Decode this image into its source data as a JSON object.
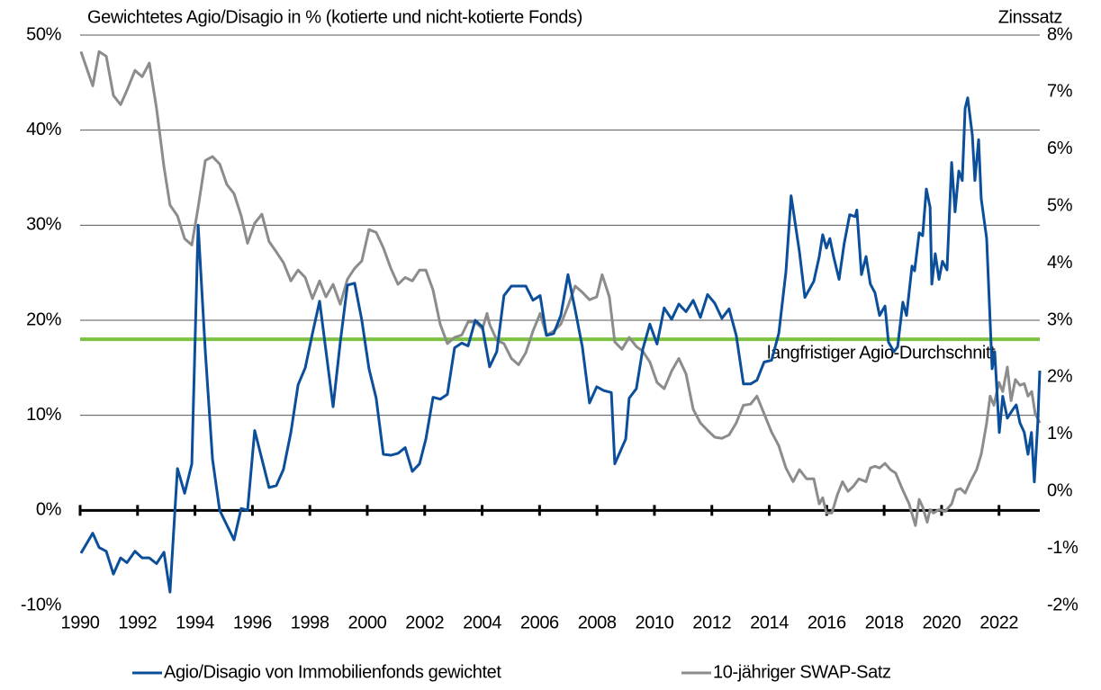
{
  "chart_data": {
    "type": "line",
    "title": "Gewichtetes Agio/Disagio in % (kotierte und nicht-kotierte Fonds)",
    "y2_title": "Zinssatz",
    "xlim": [
      1990,
      2023.42
    ],
    "xticks": [
      1990,
      1992,
      1994,
      1996,
      1998,
      2000,
      2002,
      2004,
      2006,
      2008,
      2010,
      2012,
      2014,
      2016,
      2018,
      2020,
      2022
    ],
    "ylim": [
      -10,
      50
    ],
    "yticks": [
      {
        "value": -10,
        "label": "-10%"
      },
      {
        "value": 0,
        "label": "0%"
      },
      {
        "value": 10,
        "label": "10%"
      },
      {
        "value": 20,
        "label": "20%"
      },
      {
        "value": 30,
        "label": "30%"
      },
      {
        "value": 40,
        "label": "40%"
      },
      {
        "value": 50,
        "label": "50%"
      }
    ],
    "y2lim": [
      -2,
      8
    ],
    "y2ticks": [
      {
        "value": -2,
        "label": "-2%"
      },
      {
        "value": -1,
        "label": "-1%"
      },
      {
        "value": 0,
        "label": "0%"
      },
      {
        "value": 1,
        "label": "1%"
      },
      {
        "value": 2,
        "label": "2%"
      },
      {
        "value": 3,
        "label": "3%"
      },
      {
        "value": 4,
        "label": "4%"
      },
      {
        "value": 5,
        "label": "5%"
      },
      {
        "value": 6,
        "label": "6%"
      },
      {
        "value": 7,
        "label": "7%"
      },
      {
        "value": 8,
        "label": "8%"
      }
    ],
    "grid": true,
    "reference_line": {
      "value": 18,
      "label": "langfristiger Agio-Durchschnitt",
      "color": "#7dc242"
    },
    "series": [
      {
        "name": "Agio/Disagio von Immobilienfonds gewichtet",
        "color": "#0b4f9a",
        "axis": "y",
        "x": [
          1990.03,
          1990.44,
          1990.66,
          1990.91,
          1991.16,
          1991.41,
          1991.63,
          1991.91,
          1992.16,
          1992.41,
          1992.66,
          1992.92,
          1993.13,
          1993.39,
          1993.64,
          1993.89,
          1994.11,
          1994.36,
          1994.61,
          1994.86,
          1995.36,
          1995.61,
          1995.83,
          1996.08,
          1996.58,
          1996.83,
          1997.08,
          1997.34,
          1997.59,
          1997.84,
          1998.09,
          1998.34,
          1998.81,
          1999.06,
          1999.31,
          1999.56,
          1999.81,
          2000.06,
          2000.31,
          2000.56,
          2000.82,
          2001.07,
          2001.32,
          2001.57,
          2001.82,
          2002.04,
          2002.29,
          2002.54,
          2002.79,
          2003.04,
          2003.29,
          2003.51,
          2003.76,
          2004.01,
          2004.26,
          2004.51,
          2004.76,
          2005.02,
          2005.52,
          2005.77,
          2006.02,
          2006.24,
          2006.49,
          2006.74,
          2006.99,
          2007.24,
          2007.49,
          2007.74,
          2007.99,
          2008.24,
          2008.5,
          2008.62,
          2009.0,
          2009.12,
          2009.37,
          2009.59,
          2009.84,
          2010.09,
          2010.34,
          2010.6,
          2010.85,
          2011.1,
          2011.35,
          2011.6,
          2011.85,
          2012.1,
          2012.35,
          2012.6,
          2012.85,
          2013.1,
          2013.35,
          2013.57,
          2013.82,
          2014.08,
          2014.33,
          2014.58,
          2014.76,
          2015.05,
          2015.24,
          2015.55,
          2015.74,
          2015.86,
          2015.99,
          2016.11,
          2016.24,
          2016.43,
          2016.61,
          2016.8,
          2016.99,
          2017.05,
          2017.21,
          2017.37,
          2017.52,
          2017.68,
          2017.84,
          2018.03,
          2018.15,
          2018.34,
          2018.47,
          2018.65,
          2018.78,
          2018.97,
          2019.06,
          2019.22,
          2019.34,
          2019.47,
          2019.6,
          2019.66,
          2019.78,
          2019.91,
          2020.03,
          2020.19,
          2020.35,
          2020.47,
          2020.6,
          2020.72,
          2020.82,
          2020.91,
          2021.07,
          2021.16,
          2021.29,
          2021.38,
          2021.57,
          2021.76,
          2021.85,
          2022.01,
          2022.13,
          2022.29,
          2022.48,
          2022.6,
          2022.73,
          2022.88,
          2023.01,
          2023.13,
          2023.23,
          2023.35,
          2023.42
        ],
        "values": [
          -4.5,
          -2.4,
          -3.9,
          -4.3,
          -6.7,
          -5,
          -5.5,
          -4.3,
          -5,
          -5,
          -5.6,
          -4.4,
          -8.6,
          4.4,
          1.8,
          4.9,
          30,
          16.7,
          5.4,
          0,
          -3.1,
          0.2,
          0,
          8.4,
          2.4,
          2.6,
          4.3,
          8.2,
          13.2,
          15,
          18.6,
          22,
          10.9,
          17.7,
          23.7,
          23.9,
          20,
          14.9,
          11.8,
          5.9,
          5.8,
          6,
          6.6,
          4.1,
          4.9,
          7.5,
          11.9,
          11.7,
          12.2,
          17.1,
          17.6,
          17.3,
          20,
          19.3,
          15.1,
          16.7,
          22.6,
          23.6,
          23.6,
          22.1,
          22.6,
          18.4,
          18.6,
          20.5,
          24.8,
          21.1,
          17.2,
          11.3,
          13,
          12.6,
          12.4,
          4.9,
          7.5,
          11.8,
          12.8,
          16.9,
          19.6,
          17.5,
          21.3,
          20.1,
          21.7,
          20.9,
          22.1,
          20.3,
          22.7,
          21.8,
          20.2,
          21.2,
          18.4,
          13.3,
          13.3,
          13.7,
          15.6,
          15.8,
          18.6,
          25.1,
          33.1,
          27.2,
          22.4,
          24.1,
          26.7,
          29,
          27.6,
          28.6,
          26.7,
          24.3,
          28.1,
          31.1,
          30.9,
          31.6,
          24.8,
          26.7,
          23.8,
          22.9,
          20.5,
          21.5,
          17.7,
          16.7,
          17.2,
          21.9,
          20.5,
          25.7,
          25.2,
          29.2,
          28.9,
          33.8,
          31.9,
          23.8,
          27,
          24.3,
          26.2,
          25.3,
          36.6,
          31.4,
          35.7,
          34.7,
          42.3,
          43.4,
          39.5,
          34.7,
          39,
          32.8,
          28.6,
          14.9,
          16.7,
          8.2,
          12,
          9.7,
          10.6,
          11.1,
          9.2,
          8.2,
          5.9,
          8.2,
          3,
          9.2,
          14.7
        ]
      },
      {
        "name": "10-jähriger SWAP-Satz",
        "color": "#8c8c8c",
        "axis": "y2",
        "x": [
          1990.03,
          1990.44,
          1990.66,
          1990.91,
          1991.16,
          1991.41,
          1991.63,
          1991.91,
          1992.16,
          1992.41,
          1992.66,
          1992.92,
          1993.13,
          1993.39,
          1993.64,
          1993.89,
          1994.11,
          1994.36,
          1994.61,
          1994.86,
          1995.11,
          1995.36,
          1995.61,
          1995.83,
          1996.08,
          1996.33,
          1996.58,
          1996.83,
          1997.08,
          1997.34,
          1997.59,
          1997.84,
          1998.09,
          1998.34,
          1998.56,
          1998.81,
          1999.06,
          1999.31,
          1999.56,
          1999.81,
          2000.06,
          2000.31,
          2000.56,
          2000.82,
          2001.07,
          2001.32,
          2001.57,
          2001.82,
          2002.04,
          2002.29,
          2002.54,
          2002.79,
          2003.04,
          2003.29,
          2003.51,
          2003.76,
          2004.01,
          2004.17,
          2004.26,
          2004.51,
          2004.76,
          2005.02,
          2005.27,
          2005.52,
          2005.77,
          2006.02,
          2006.24,
          2006.49,
          2006.74,
          2006.99,
          2007.24,
          2007.49,
          2007.74,
          2007.99,
          2008.18,
          2008.43,
          2008.62,
          2008.87,
          2009.12,
          2009.37,
          2009.59,
          2009.84,
          2010.09,
          2010.34,
          2010.6,
          2010.85,
          2011.1,
          2011.35,
          2011.6,
          2011.85,
          2012.1,
          2012.35,
          2012.6,
          2012.85,
          2013.1,
          2013.35,
          2013.57,
          2013.82,
          2014.08,
          2014.33,
          2014.58,
          2014.83,
          2015.05,
          2015.3,
          2015.55,
          2015.74,
          2015.86,
          2015.99,
          2016.18,
          2016.37,
          2016.55,
          2016.74,
          2016.93,
          2017.12,
          2017.37,
          2017.52,
          2017.68,
          2017.84,
          2018.03,
          2018.22,
          2018.4,
          2018.65,
          2018.87,
          2019.09,
          2019.22,
          2019.34,
          2019.5,
          2019.6,
          2019.72,
          2019.91,
          2020.13,
          2020.35,
          2020.5,
          2020.66,
          2020.82,
          2021.0,
          2021.22,
          2021.38,
          2021.57,
          2021.69,
          2021.82,
          2022.0,
          2022.13,
          2022.29,
          2022.42,
          2022.57,
          2022.73,
          2022.88,
          2023.01,
          2023.14,
          2023.26,
          2023.42
        ],
        "values": [
          7.71,
          7.11,
          7.71,
          7.63,
          6.94,
          6.78,
          7.03,
          7.38,
          7.27,
          7.51,
          6.72,
          5.69,
          5.02,
          4.83,
          4.43,
          4.32,
          4.98,
          5.8,
          5.87,
          5.74,
          5.38,
          5.22,
          4.83,
          4.35,
          4.7,
          4.86,
          4.38,
          4.2,
          4.01,
          3.69,
          3.88,
          3.75,
          3.38,
          3.69,
          3.41,
          3.63,
          3.28,
          3.72,
          3.91,
          4.04,
          4.59,
          4.54,
          4.27,
          3.91,
          3.63,
          3.75,
          3.69,
          3.88,
          3.88,
          3.53,
          2.93,
          2.59,
          2.7,
          2.74,
          2.97,
          2.97,
          2.85,
          3.12,
          2.93,
          2.65,
          2.59,
          2.33,
          2.22,
          2.43,
          2.81,
          3.12,
          2.74,
          2.81,
          2.93,
          3.25,
          3.6,
          3.49,
          3.36,
          3.41,
          3.8,
          3.41,
          2.62,
          2.49,
          2.7,
          2.54,
          2.46,
          2.27,
          1.91,
          1.8,
          2.11,
          2.33,
          2.06,
          1.44,
          1.2,
          1.07,
          0.95,
          0.93,
          0.99,
          1.2,
          1.51,
          1.53,
          1.67,
          1.36,
          1.04,
          0.8,
          0.41,
          0.17,
          0.38,
          0.22,
          0.22,
          -0.22,
          -0.11,
          -0.38,
          -0.38,
          -0.06,
          0.17,
          0,
          0.09,
          0.22,
          0.17,
          0.41,
          0.44,
          0.41,
          0.49,
          0.38,
          0.32,
          0.02,
          -0.22,
          -0.6,
          -0.14,
          -0.27,
          -0.54,
          -0.32,
          -0.38,
          -0.32,
          -0.35,
          -0.22,
          0.02,
          0.05,
          -0.03,
          0.17,
          0.38,
          0.65,
          1.2,
          1.67,
          1.51,
          1.91,
          1.75,
          2.18,
          1.59,
          1.96,
          1.86,
          1.89,
          1.67,
          1.75,
          1.36,
          1.2
        ]
      }
    ]
  }
}
